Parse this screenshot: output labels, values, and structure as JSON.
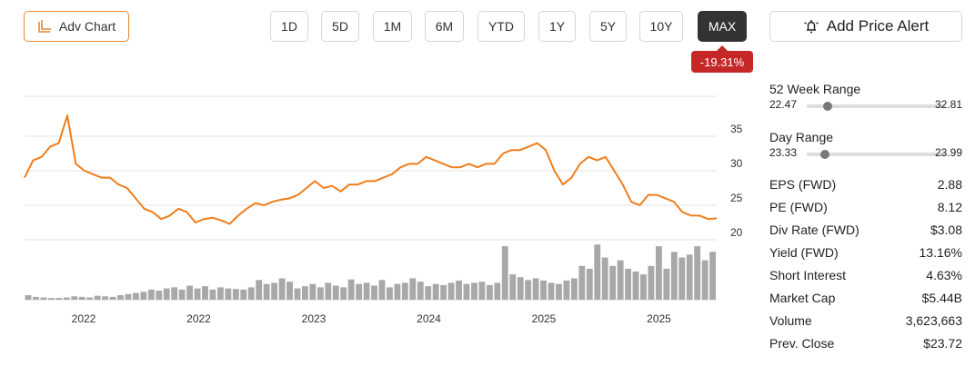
{
  "toolbar": {
    "adv_chart": "Adv Chart",
    "periods": [
      "1D",
      "5D",
      "1M",
      "6M",
      "YTD",
      "1Y",
      "5Y",
      "10Y",
      "MAX"
    ],
    "active": "MAX",
    "change": "-19.31%",
    "alert": "Add Price Alert"
  },
  "chart_data": {
    "type": "line",
    "values": [
      29,
      31.5,
      32,
      33.5,
      34,
      38,
      31,
      30,
      29.5,
      29,
      29,
      28,
      27.5,
      26,
      24.5,
      24,
      23,
      23.5,
      24.5,
      24,
      22.5,
      23,
      23.2,
      22.8,
      22.3,
      23.5,
      24.5,
      25.3,
      25,
      25.5,
      25.8,
      26,
      26.5,
      27.5,
      28.5,
      27.5,
      27.8,
      27,
      28,
      28,
      28.5,
      28.5,
      29,
      29.5,
      30.5,
      31,
      31,
      32,
      31.5,
      31,
      30.5,
      30.5,
      31,
      30.5,
      31,
      31,
      32.5,
      33,
      33,
      33.5,
      34,
      33,
      30,
      28,
      29,
      31,
      32,
      31.5,
      32,
      30,
      28,
      25.5,
      25,
      26.5,
      26.5,
      26,
      25.5,
      24,
      23.5,
      23.5,
      23,
      23.1
    ],
    "color": "#f07d1a",
    "ylim": [
      20,
      40
    ],
    "yticks": [
      20,
      25,
      30,
      35
    ],
    "grid": true,
    "x_axis_labels": [
      "2022",
      "2022",
      "2023",
      "2024",
      "2025",
      "2025"
    ],
    "volume": {
      "values": [
        8,
        5,
        4,
        3,
        3,
        4,
        6,
        5,
        4,
        7,
        6,
        5,
        8,
        10,
        12,
        14,
        18,
        16,
        20,
        22,
        18,
        25,
        20,
        24,
        18,
        22,
        20,
        19,
        18,
        22,
        35,
        28,
        30,
        38,
        32,
        20,
        24,
        28,
        22,
        30,
        25,
        22,
        36,
        28,
        30,
        25,
        35,
        22,
        28,
        30,
        38,
        32,
        24,
        28,
        26,
        30,
        34,
        28,
        30,
        32,
        26,
        30,
        95,
        45,
        40,
        35,
        38,
        34,
        30,
        28,
        34,
        38,
        60,
        55,
        98,
        75,
        60,
        70,
        55,
        50,
        45,
        60,
        95,
        55,
        85,
        75,
        80,
        95,
        70,
        85
      ],
      "color": "#a8a8a8",
      "ylim": [
        0,
        100
      ]
    }
  },
  "ranges": [
    {
      "title": "52 Week Range",
      "low": 22.47,
      "high": 32.81
    },
    {
      "title": "Day Range",
      "low": 23.33,
      "high": 23.99
    }
  ],
  "stats": [
    [
      "EPS (FWD)",
      "2.88"
    ],
    [
      "PE (FWD)",
      "8.12"
    ],
    [
      "Div Rate (FWD)",
      "$3.08"
    ],
    [
      "Yield (FWD)",
      "13.16%"
    ],
    [
      "Short Interest",
      "4.63%"
    ],
    [
      "Market Cap",
      "$5.44B"
    ],
    [
      "Volume",
      "3,623,663"
    ],
    [
      "Prev. Close",
      "$23.72"
    ]
  ]
}
